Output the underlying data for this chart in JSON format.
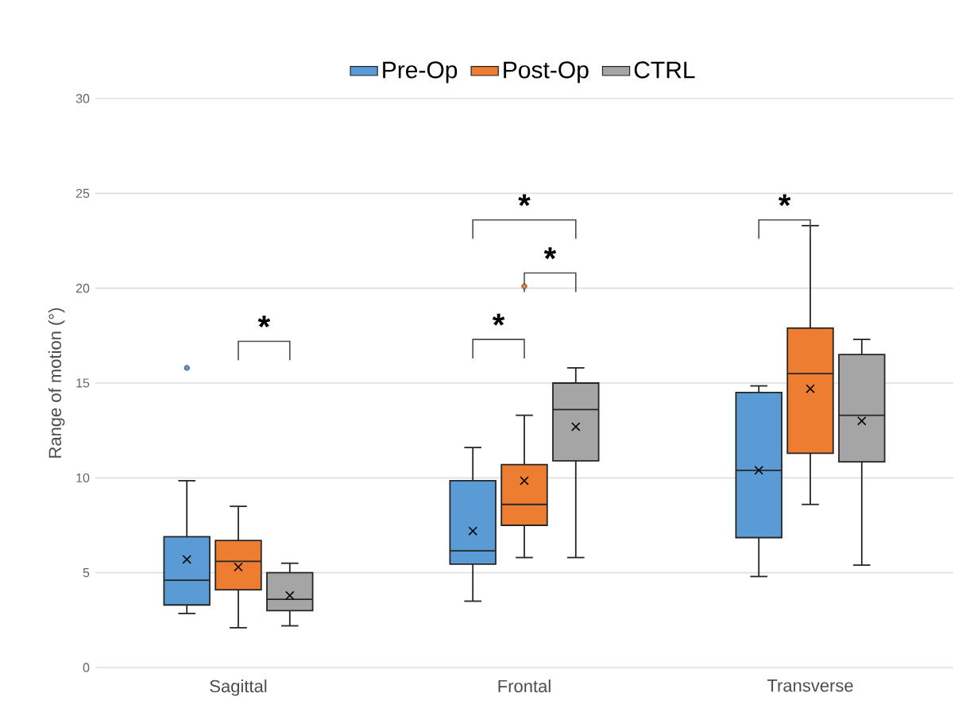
{
  "chart_data": {
    "type": "box",
    "ylabel": "Range of motion (°)",
    "categories": [
      "Sagittal",
      "Frontal",
      "Transverse"
    ],
    "ylim": [
      0,
      30
    ],
    "yticks": [
      0,
      5,
      10,
      15,
      20,
      25,
      30
    ],
    "grid": "y",
    "legend": "top",
    "annotations": [
      "*",
      "*",
      "*",
      "*",
      "*"
    ],
    "series": [
      {
        "name": "Pre-Op",
        "color": "#5b9bd5",
        "boxes": [
          {
            "low": 2.85,
            "q1": 3.3,
            "median": 4.6,
            "q3": 6.9,
            "high": 9.85,
            "mean": 5.7,
            "outliers": [
              15.8
            ]
          },
          {
            "low": 3.5,
            "q1": 5.45,
            "median": 6.15,
            "q3": 9.85,
            "high": 11.6,
            "mean": 7.2
          },
          {
            "low": 4.8,
            "q1": 6.85,
            "median": 10.4,
            "q3": 14.5,
            "high": 14.85,
            "mean": 10.4
          }
        ]
      },
      {
        "name": "Post-Op",
        "color": "#ed7d31",
        "boxes": [
          {
            "low": 2.1,
            "q1": 4.1,
            "median": 5.6,
            "q3": 6.7,
            "high": 8.5,
            "mean": 5.3
          },
          {
            "low": 5.8,
            "q1": 7.5,
            "median": 8.6,
            "q3": 10.7,
            "high": 13.3,
            "mean": 9.85,
            "outliers": [
              20.1
            ]
          },
          {
            "low": 8.6,
            "q1": 11.3,
            "median": 15.5,
            "q3": 17.9,
            "high": 23.3,
            "mean": 14.7
          }
        ]
      },
      {
        "name": "CTRL",
        "color": "#a5a5a5",
        "boxes": [
          {
            "low": 2.2,
            "q1": 3.0,
            "median": 3.6,
            "q3": 5.0,
            "high": 5.5,
            "mean": 3.8
          },
          {
            "low": 5.8,
            "q1": 10.9,
            "median": 13.6,
            "q3": 15.0,
            "high": 15.8,
            "mean": 12.7
          },
          {
            "low": 5.4,
            "q1": 10.85,
            "median": 13.3,
            "q3": 16.5,
            "high": 17.3,
            "mean": 13.0
          }
        ]
      }
    ]
  }
}
